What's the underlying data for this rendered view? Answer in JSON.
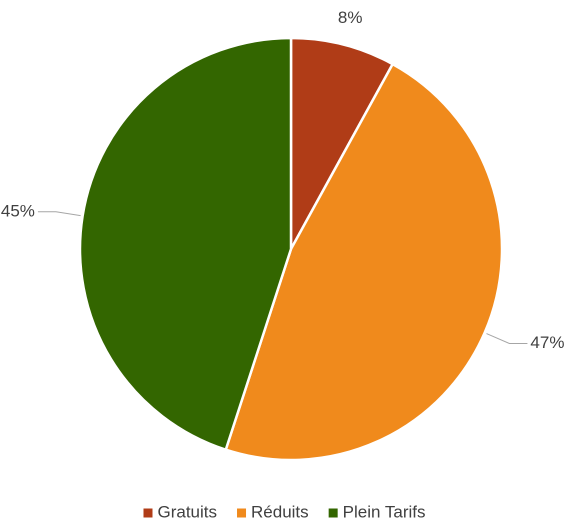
{
  "chart_data": {
    "type": "pie",
    "categories": [
      "Gratuits",
      "Réduits",
      "Plein Tarifs"
    ],
    "values": [
      8,
      47,
      45
    ],
    "value_labels": [
      "8%",
      "47%",
      "45%"
    ],
    "colors": [
      "#b03c17",
      "#f08a1c",
      "#336600"
    ],
    "legend": "bottom"
  }
}
